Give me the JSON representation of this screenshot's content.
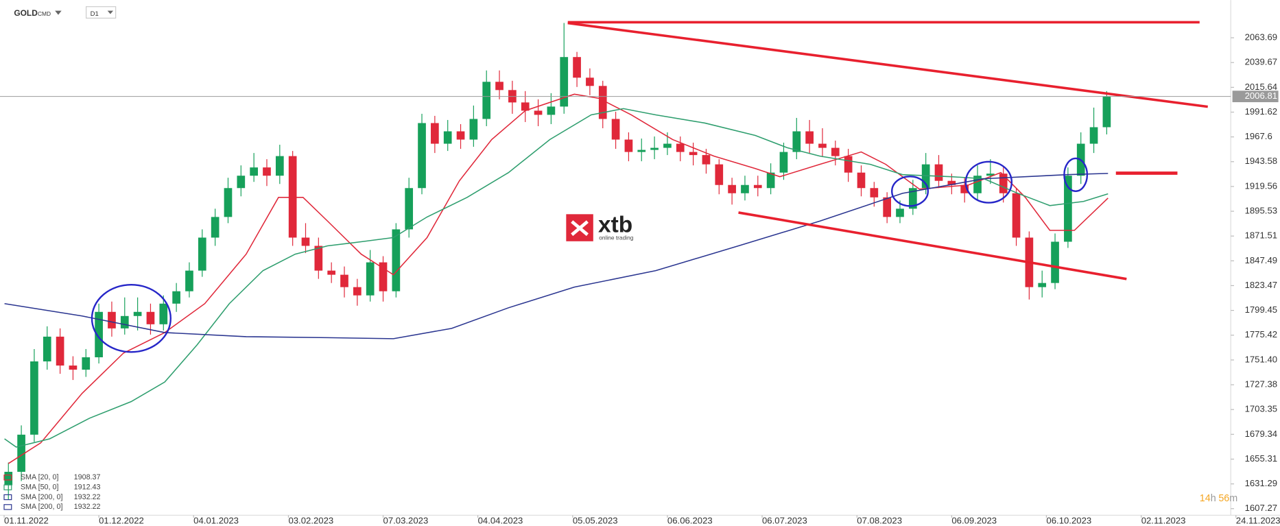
{
  "ui": {
    "symbol": "GOLD",
    "market": "CMD",
    "interval": "D1",
    "countdown": [
      "14",
      "h",
      "56",
      "m"
    ],
    "logo": "xtb",
    "logo_tagline": "online trading"
  },
  "chart_data": {
    "type": "candlestick",
    "open": [
      1630,
      1643,
      1679,
      1750,
      1774,
      1746,
      1742,
      1754,
      1798,
      1782,
      1794,
      1798,
      1786,
      1806,
      1818,
      1838,
      1870,
      1890,
      1918,
      1930,
      1938,
      1930,
      1949,
      1870,
      1862,
      1838,
      1834,
      1822,
      1814,
      1846,
      1818,
      1878,
      1918,
      1981,
      1961,
      1973,
      1965,
      1985,
      2021,
      2013,
      2001,
      1993,
      1989,
      1997,
      2045,
      2025,
      2017,
      1985,
      1965,
      1953,
      1955,
      1957,
      1961,
      1953,
      1950,
      1941,
      1921,
      1913,
      1921,
      1918,
      1933,
      1953,
      1973,
      1961,
      1957,
      1949,
      1933,
      1918,
      1909,
      1890,
      1898,
      1918,
      1941,
      1925,
      1921,
      1913,
      1930,
      1932,
      1913,
      1870,
      1822,
      1826,
      1866,
      1930,
      1961,
      1977
    ],
    "high": [
      1652,
      1688,
      1762,
      1784,
      1782,
      1755,
      1762,
      1806,
      1808,
      1812,
      1812,
      1806,
      1814,
      1826,
      1846,
      1878,
      1898,
      1928,
      1940,
      1952,
      1946,
      1960,
      1954,
      1884,
      1870,
      1846,
      1842,
      1830,
      1858,
      1852,
      1884,
      1928,
      1990,
      1988,
      1984,
      1980,
      1998,
      2032,
      2032,
      2022,
      2012,
      2004,
      2010,
      2078,
      2050,
      2034,
      2022,
      1992,
      1972,
      1966,
      1968,
      1972,
      1968,
      1962,
      1956,
      1946,
      1928,
      1930,
      1930,
      1942,
      1962,
      1986,
      1984,
      1976,
      1964,
      1956,
      1940,
      1924,
      1914,
      1906,
      1926,
      1952,
      1950,
      1932,
      1928,
      1940,
      1946,
      1938,
      1918,
      1876,
      1838,
      1874,
      1938,
      1972,
      1996,
      2012
    ],
    "low": [
      1616,
      1634,
      1672,
      1742,
      1738,
      1732,
      1735,
      1748,
      1774,
      1776,
      1780,
      1776,
      1780,
      1798,
      1812,
      1832,
      1862,
      1884,
      1910,
      1924,
      1920,
      1922,
      1862,
      1855,
      1830,
      1826,
      1812,
      1804,
      1808,
      1808,
      1812,
      1870,
      1912,
      1952,
      1954,
      1956,
      1958,
      1978,
      2004,
      1990,
      1982,
      1978,
      1980,
      1990,
      2016,
      2008,
      1976,
      1956,
      1944,
      1944,
      1946,
      1950,
      1944,
      1940,
      1932,
      1912,
      1902,
      1906,
      1910,
      1912,
      1926,
      1946,
      1952,
      1948,
      1940,
      1924,
      1910,
      1900,
      1884,
      1884,
      1892,
      1912,
      1918,
      1912,
      1904,
      1906,
      1922,
      1904,
      1862,
      1810,
      1812,
      1820,
      1860,
      1922,
      1952,
      1970
    ],
    "close": [
      1643,
      1679,
      1750,
      1774,
      1746,
      1742,
      1754,
      1798,
      1782,
      1794,
      1798,
      1786,
      1806,
      1818,
      1838,
      1870,
      1890,
      1918,
      1930,
      1938,
      1930,
      1949,
      1870,
      1862,
      1838,
      1834,
      1822,
      1814,
      1846,
      1818,
      1878,
      1918,
      1981,
      1961,
      1973,
      1965,
      1985,
      2021,
      2013,
      2001,
      1993,
      1989,
      1997,
      2045,
      2025,
      2017,
      1985,
      1965,
      1953,
      1955,
      1957,
      1961,
      1953,
      1950,
      1941,
      1921,
      1913,
      1921,
      1918,
      1933,
      1953,
      1973,
      1961,
      1957,
      1949,
      1933,
      1918,
      1909,
      1890,
      1898,
      1918,
      1941,
      1925,
      1921,
      1913,
      1930,
      1932,
      1913,
      1870,
      1822,
      1826,
      1866,
      1930,
      1961,
      1977,
      2006.81
    ],
    "up_color": "#16a05a",
    "down_color": "#e0283a",
    "last_price": 2006.81,
    "series": [
      {
        "name": "SMA [20, 0]",
        "color": "#e0283a",
        "last": 1908.37,
        "x": [
          0,
          2.5,
          5.7,
          8.9,
          12.1,
          15.2,
          18.4,
          20.9,
          22.8,
          24.7,
          27.3,
          29.8,
          32.4,
          34.9,
          37.4,
          40,
          43.8,
          45.7,
          48.2,
          51.4,
          54.6,
          57.8,
          59.7,
          62.8,
          66,
          67.9,
          70.5,
          74.3,
          76.8,
          78.7,
          80.6,
          82.5,
          85.1
        ],
        "values": [
          1651,
          1671,
          1719,
          1758,
          1778,
          1806,
          1854,
          1909,
          1909,
          1886,
          1854,
          1834,
          1870,
          1925,
          1965,
          1993,
          2009,
          2005,
          1989,
          1965,
          1949,
          1937,
          1929,
          1941,
          1953,
          1941,
          1917,
          1921,
          1933,
          1909,
          1877,
          1877,
          1908.37
        ]
      },
      {
        "name": "SMA [50, 0]",
        "color": "#2e9e6e",
        "last": 1912.43,
        "x": [
          -0.3,
          0.6,
          3.2,
          6.3,
          9.5,
          12.1,
          14.6,
          17.1,
          19.7,
          22.2,
          24.7,
          27.3,
          29.8,
          32.4,
          35.5,
          38.7,
          41.9,
          45.1,
          47.6,
          50.1,
          53.9,
          57.8,
          60.3,
          62.8,
          66.7,
          69.2,
          73,
          75.5,
          78.1,
          80.6,
          83.2,
          85.1
        ],
        "values": [
          1675,
          1667,
          1675,
          1695,
          1711,
          1730,
          1766,
          1806,
          1838,
          1854,
          1862,
          1866,
          1870,
          1890,
          1909,
          1933,
          1965,
          1989,
          1995,
          1989,
          1981,
          1969,
          1957,
          1949,
          1941,
          1931,
          1929,
          1927,
          1913,
          1901,
          1905,
          1912.43
        ]
      },
      {
        "name": "SMA [200, 0]",
        "color": "#2a3590",
        "last": 1932.22,
        "x": [
          -0.3,
          5.7,
          12.1,
          18.4,
          24.7,
          29.8,
          34.3,
          38.7,
          43.8,
          50.1,
          56.5,
          62.8,
          69.2,
          75.5,
          81.9,
          85.1
        ],
        "values": [
          1806,
          1794,
          1778,
          1774,
          1773,
          1772,
          1782,
          1802,
          1822,
          1838,
          1862,
          1886,
          1913,
          1927,
          1931,
          1932.22
        ]
      },
      {
        "name": "SMA [200, 0]",
        "color": "#2a3590",
        "last": 1932.22
      }
    ],
    "xlim": [
      -0.65,
      94.6
    ],
    "xticks": [
      {
        "value": -0.33,
        "label": "01.11.2022"
      },
      {
        "value": 7,
        "label": "01.12.2022"
      },
      {
        "value": 14.33,
        "label": "04.01.2023"
      },
      {
        "value": 21.67,
        "label": "03.02.2023"
      },
      {
        "value": 29,
        "label": "07.03.2023"
      },
      {
        "value": 36.33,
        "label": "04.04.2023"
      },
      {
        "value": 43.67,
        "label": "05.05.2023"
      },
      {
        "value": 51,
        "label": "06.06.2023"
      },
      {
        "value": 58.33,
        "label": "06.07.2023"
      },
      {
        "value": 65.67,
        "label": "07.08.2023"
      },
      {
        "value": 73,
        "label": "06.09.2023"
      },
      {
        "value": 80.33,
        "label": "06.10.2023"
      },
      {
        "value": 87.67,
        "label": "02.11.2023"
      },
      {
        "value": 95,
        "label": "24.11.2023"
      }
    ],
    "ylim": [
      1600.9,
      2100.2
    ],
    "yticks": [
      1607.27,
      1631.29,
      1655.31,
      1679.34,
      1703.35,
      1727.38,
      {
        "value": 1751.4,
        "label": "1751.40"
      },
      1775.42,
      1799.45,
      1823.47,
      1847.49,
      1871.51,
      1895.53,
      1919.56,
      1943.58,
      1967.6,
      1991.62,
      2015.64,
      2039.67,
      2063.69
    ],
    "grid": false
  }
}
